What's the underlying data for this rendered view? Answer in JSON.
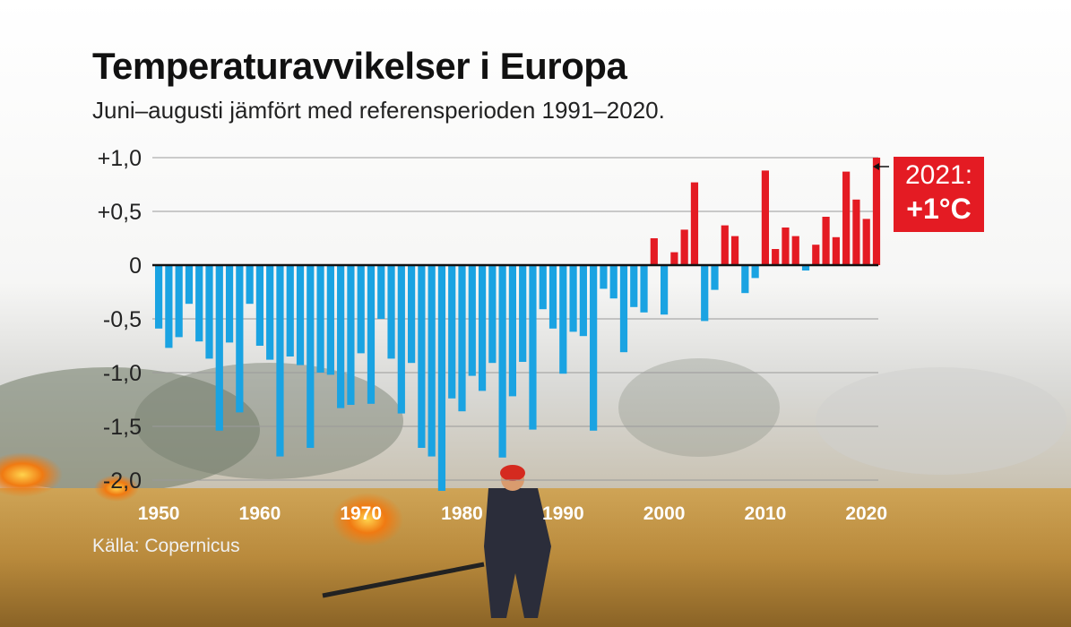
{
  "title": "Temperaturavvikelser i Europa",
  "subtitle": "Juni–augusti jämfört med referensperioden 1991–2020.",
  "source": "Källa: Copernicus",
  "callout": {
    "year": "2021:",
    "value": "+1°C"
  },
  "colors": {
    "negative": "#1aa3e2",
    "positive": "#e41b23",
    "callout_bg": "#e41b23"
  },
  "chart_data": {
    "type": "bar",
    "title": "Temperaturavvikelser i Europa",
    "subtitle": "Juni–augusti jämfört med referensperioden 1991–2020.",
    "ylim": [
      -2.0,
      1.0
    ],
    "y_ticks": [
      1.0,
      0.5,
      0,
      -0.5,
      -1.0,
      -1.5,
      -2.0
    ],
    "y_tick_labels": [
      "+1,0",
      "+0,5",
      "0",
      "-0,5",
      "-1,0",
      "-1,5",
      "-2,0"
    ],
    "x_tick_labels": [
      "1950",
      "1960",
      "1970",
      "1980",
      "1990",
      "2000",
      "2010",
      "2020"
    ],
    "grid": true,
    "years": [
      1950,
      1951,
      1952,
      1953,
      1954,
      1955,
      1956,
      1957,
      1958,
      1959,
      1960,
      1961,
      1962,
      1963,
      1964,
      1965,
      1966,
      1967,
      1968,
      1969,
      1970,
      1971,
      1972,
      1973,
      1974,
      1975,
      1976,
      1977,
      1978,
      1979,
      1980,
      1981,
      1982,
      1983,
      1984,
      1985,
      1986,
      1987,
      1988,
      1989,
      1990,
      1991,
      1992,
      1993,
      1994,
      1995,
      1996,
      1997,
      1998,
      1999,
      2000,
      2001,
      2002,
      2003,
      2004,
      2005,
      2006,
      2007,
      2008,
      2009,
      2010,
      2011,
      2012,
      2013,
      2014,
      2015,
      2016,
      2017,
      2018,
      2019,
      2020,
      2021
    ],
    "values": [
      -0.59,
      -0.77,
      -0.67,
      -0.36,
      -0.71,
      -0.87,
      -1.54,
      -0.72,
      -1.37,
      -0.36,
      -0.75,
      -0.88,
      -1.78,
      -0.85,
      -0.93,
      -1.7,
      -1.0,
      -1.02,
      -1.33,
      -1.3,
      -0.82,
      -1.29,
      -0.5,
      -0.87,
      -1.38,
      -0.91,
      -1.7,
      -1.78,
      -2.1,
      -1.24,
      -1.36,
      -1.03,
      -1.17,
      -0.91,
      -1.79,
      -1.22,
      -0.9,
      -1.53,
      -0.41,
      -0.59,
      -1.01,
      -0.62,
      -0.66,
      -1.54,
      -0.22,
      -0.31,
      -0.81,
      -0.39,
      -0.44,
      0.25,
      -0.46,
      0.12,
      0.33,
      0.77,
      -0.52,
      -0.23,
      0.37,
      0.27,
      -0.26,
      -0.12,
      0.88,
      0.15,
      0.35,
      0.27,
      -0.05,
      0.19,
      0.45,
      0.26,
      0.87,
      0.61,
      0.43,
      1.0
    ]
  }
}
